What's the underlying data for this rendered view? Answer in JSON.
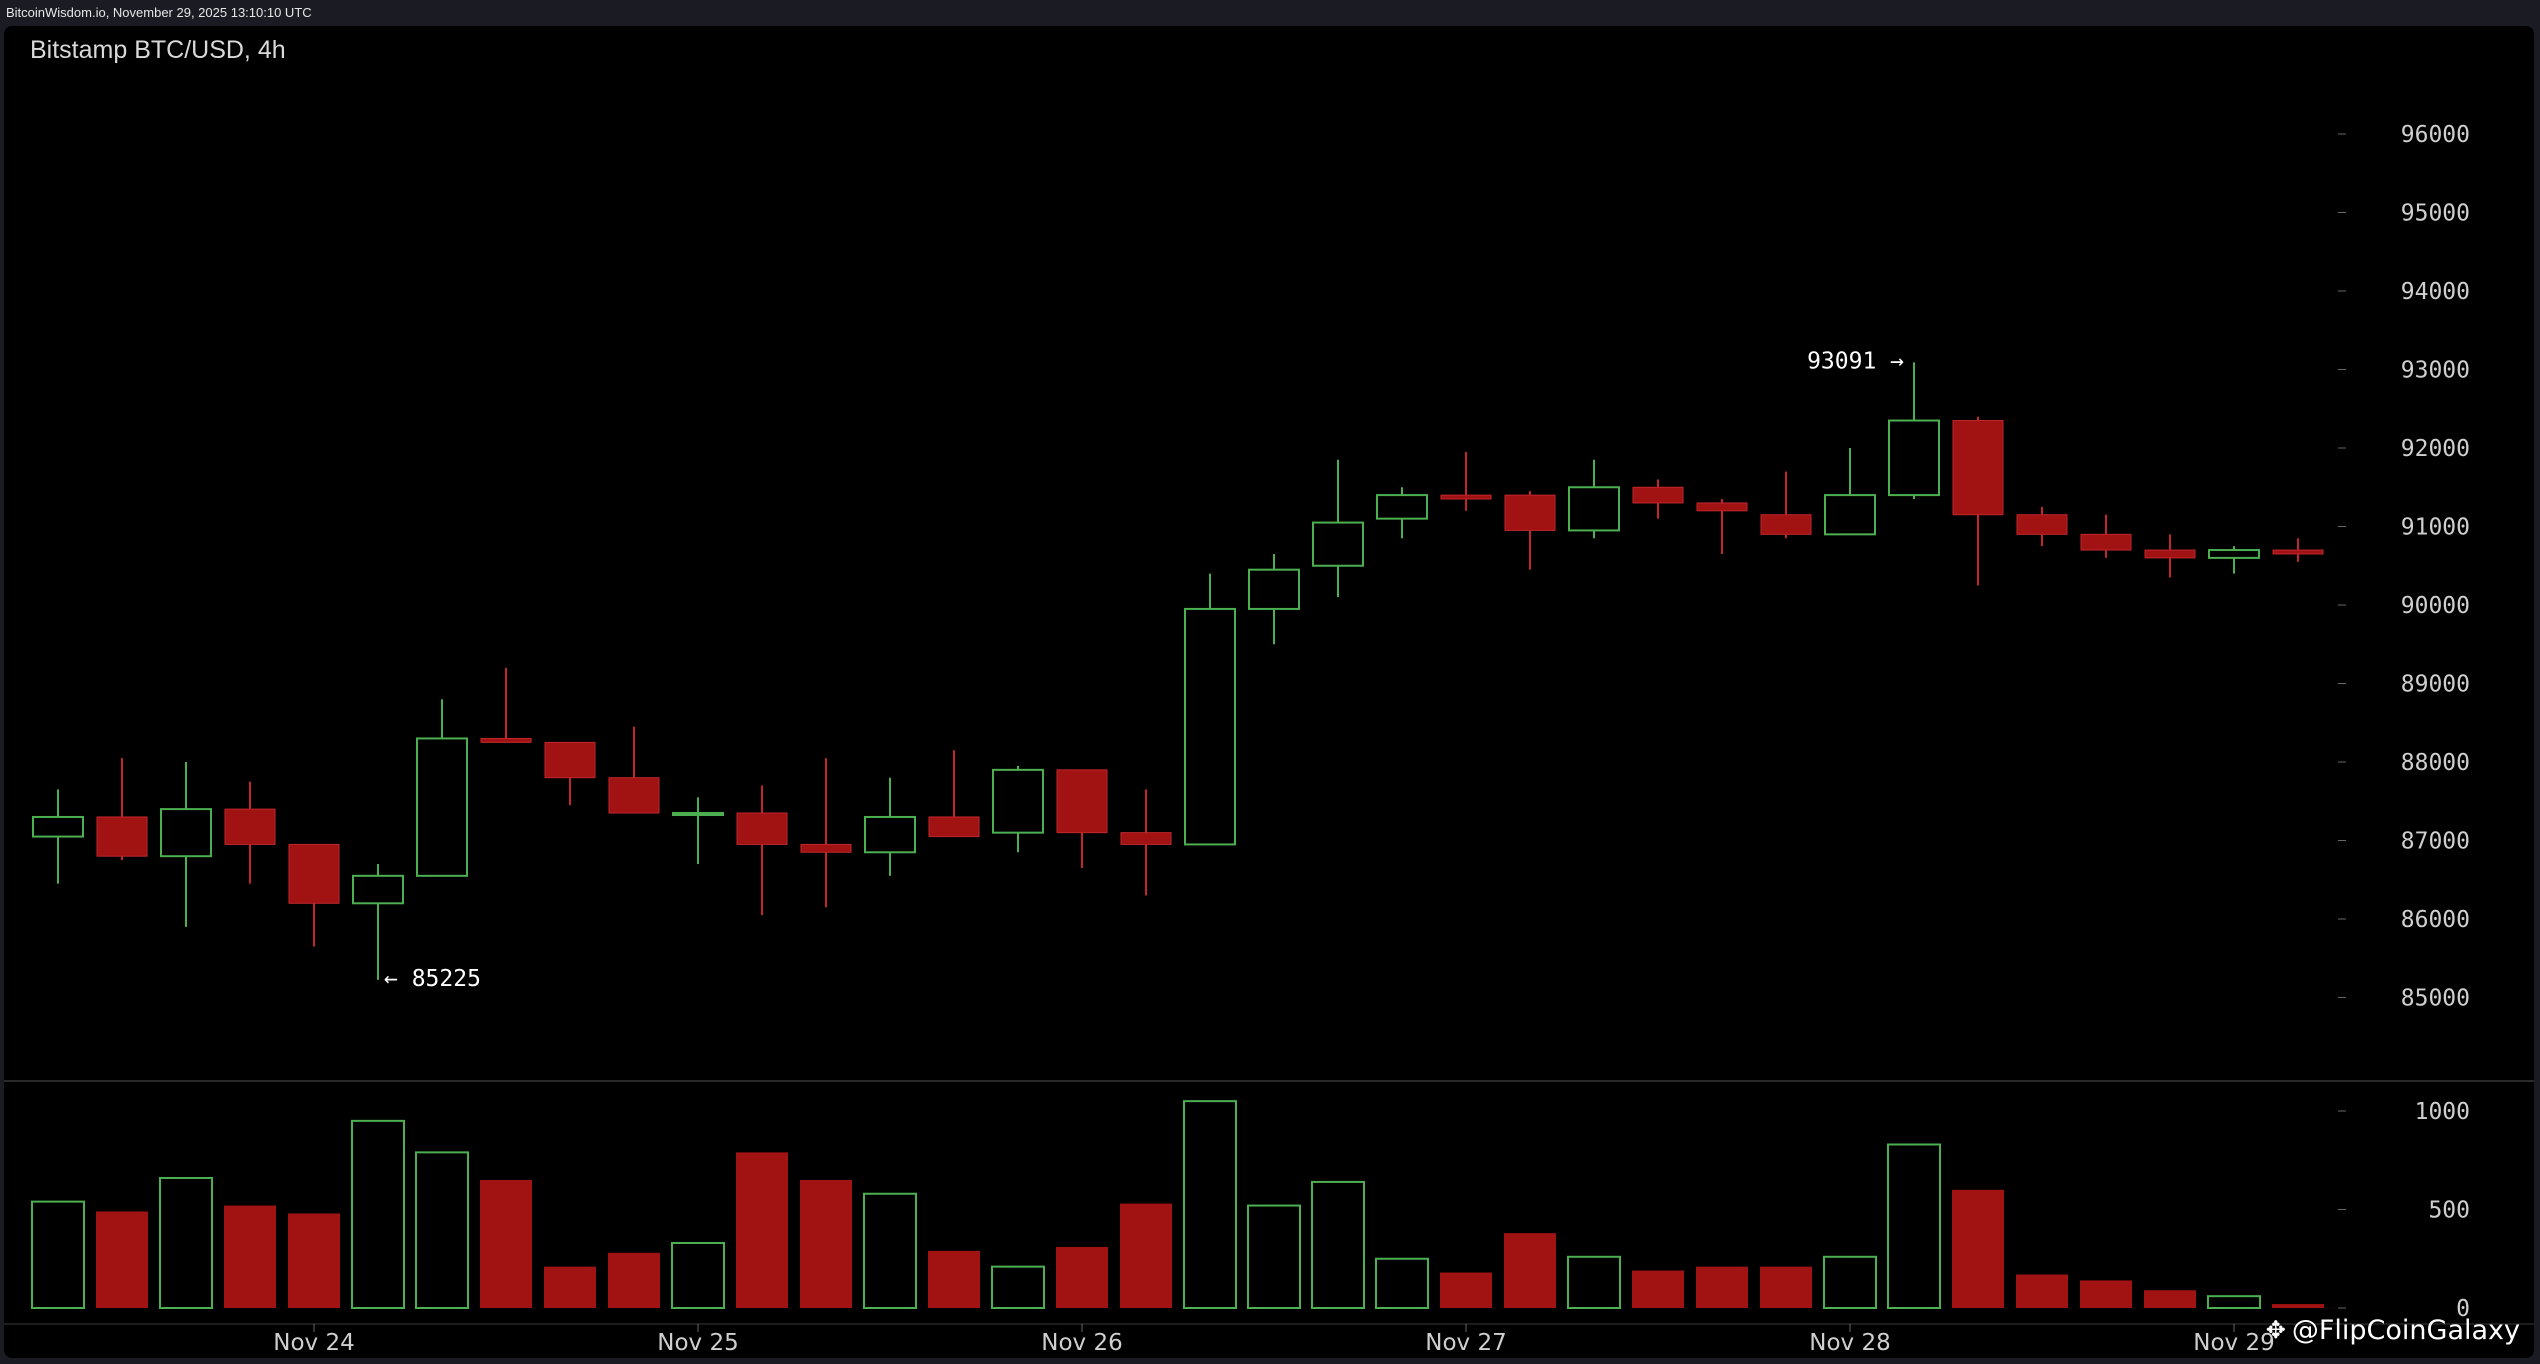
{
  "header": {
    "timestamp": "BitcoinWisdom.io, November 29, 2025 13:10:10 UTC"
  },
  "chart_data": {
    "type": "candlestick",
    "title": "Bitstamp BTC/USD, 4h",
    "price_axis": {
      "min": 84000,
      "max": 97000,
      "ticks": [
        96000,
        95000,
        94000,
        93000,
        92000,
        91000,
        90000,
        89000,
        88000,
        87000,
        86000,
        85000
      ],
      "tick_labels": [
        "96000",
        "95000",
        "94000",
        "93000",
        "92000",
        "91000",
        "90000",
        "89000",
        "88000",
        "87000",
        "86000",
        "85000"
      ]
    },
    "volume_axis": {
      "min": 0,
      "max": 1100,
      "ticks": [
        1000,
        500,
        0
      ],
      "tick_labels": [
        "1000",
        "500",
        "0"
      ]
    },
    "x_axis": {
      "labels": [
        {
          "label": "Nov 24",
          "candle_index": 4
        },
        {
          "label": "Nov 25",
          "candle_index": 10
        },
        {
          "label": "Nov 26",
          "candle_index": 16
        },
        {
          "label": "Nov 27",
          "candle_index": 22
        },
        {
          "label": "Nov 28",
          "candle_index": 28
        },
        {
          "label": "Nov 29",
          "candle_index": 34
        }
      ]
    },
    "annotations": [
      {
        "text": "← 85225",
        "candle_index": 5,
        "price": 85225,
        "side": "right"
      },
      {
        "text": "93091 →",
        "candle_index": 29,
        "price": 93091,
        "side": "left"
      }
    ],
    "up_color": "#4caf50",
    "down_color": "#a11212",
    "candles": [
      {
        "o": 87050,
        "h": 87650,
        "l": 86450,
        "c": 87300,
        "v": 540
      },
      {
        "o": 87300,
        "h": 88050,
        "l": 86750,
        "c": 86800,
        "v": 490
      },
      {
        "o": 86800,
        "h": 88000,
        "l": 85900,
        "c": 87400,
        "v": 660
      },
      {
        "o": 87400,
        "h": 87750,
        "l": 86450,
        "c": 86950,
        "v": 520
      },
      {
        "o": 86950,
        "h": 86950,
        "l": 85650,
        "c": 86200,
        "v": 480
      },
      {
        "o": 86200,
        "h": 86700,
        "l": 85225,
        "c": 86550,
        "v": 950
      },
      {
        "o": 86550,
        "h": 88800,
        "l": 86550,
        "c": 88300,
        "v": 790
      },
      {
        "o": 88300,
        "h": 89200,
        "l": 88250,
        "c": 88250,
        "v": 650
      },
      {
        "o": 88250,
        "h": 88250,
        "l": 87450,
        "c": 87800,
        "v": 210
      },
      {
        "o": 87800,
        "h": 88450,
        "l": 87350,
        "c": 87350,
        "v": 280
      },
      {
        "o": 87350,
        "h": 87550,
        "l": 86700,
        "c": 87350,
        "v": 330
      },
      {
        "o": 87350,
        "h": 87700,
        "l": 86050,
        "c": 86950,
        "v": 790
      },
      {
        "o": 86950,
        "h": 88050,
        "l": 86150,
        "c": 86850,
        "v": 650
      },
      {
        "o": 86850,
        "h": 87800,
        "l": 86550,
        "c": 87300,
        "v": 580
      },
      {
        "o": 87300,
        "h": 88150,
        "l": 87050,
        "c": 87050,
        "v": 290
      },
      {
        "o": 87100,
        "h": 87950,
        "l": 86850,
        "c": 87900,
        "v": 210
      },
      {
        "o": 87900,
        "h": 87900,
        "l": 86650,
        "c": 87100,
        "v": 310
      },
      {
        "o": 87100,
        "h": 87650,
        "l": 86300,
        "c": 86950,
        "v": 530
      },
      {
        "o": 86950,
        "h": 90400,
        "l": 86950,
        "c": 89950,
        "v": 1050
      },
      {
        "o": 89950,
        "h": 90650,
        "l": 89500,
        "c": 90450,
        "v": 520
      },
      {
        "o": 90500,
        "h": 91850,
        "l": 90100,
        "c": 91050,
        "v": 640
      },
      {
        "o": 91100,
        "h": 91500,
        "l": 90850,
        "c": 91400,
        "v": 250
      },
      {
        "o": 91400,
        "h": 91950,
        "l": 91200,
        "c": 91350,
        "v": 180
      },
      {
        "o": 91400,
        "h": 91450,
        "l": 90450,
        "c": 90950,
        "v": 380
      },
      {
        "o": 90950,
        "h": 91850,
        "l": 90850,
        "c": 91500,
        "v": 260
      },
      {
        "o": 91500,
        "h": 91600,
        "l": 91100,
        "c": 91300,
        "v": 190
      },
      {
        "o": 91300,
        "h": 91350,
        "l": 90650,
        "c": 91200,
        "v": 210
      },
      {
        "o": 91150,
        "h": 91700,
        "l": 90850,
        "c": 90900,
        "v": 210
      },
      {
        "o": 90900,
        "h": 92000,
        "l": 90900,
        "c": 91400,
        "v": 260
      },
      {
        "o": 91400,
        "h": 93091,
        "l": 91350,
        "c": 92350,
        "v": 830
      },
      {
        "o": 92350,
        "h": 92400,
        "l": 90250,
        "c": 91150,
        "v": 600
      },
      {
        "o": 91150,
        "h": 91250,
        "l": 90750,
        "c": 90900,
        "v": 170
      },
      {
        "o": 90900,
        "h": 91150,
        "l": 90600,
        "c": 90700,
        "v": 140
      },
      {
        "o": 90700,
        "h": 90900,
        "l": 90350,
        "c": 90600,
        "v": 90
      },
      {
        "o": 90600,
        "h": 90750,
        "l": 90400,
        "c": 90700,
        "v": 60
      },
      {
        "o": 90700,
        "h": 90850,
        "l": 90550,
        "c": 90650,
        "v": 20
      }
    ]
  },
  "footer": {
    "watermark": "@FlipCoinGalaxy",
    "watermark_icon": "diamond-logo-icon"
  }
}
